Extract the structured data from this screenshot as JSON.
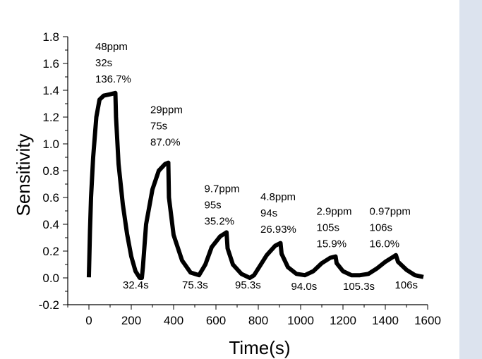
{
  "chart_data": {
    "type": "line",
    "title": "",
    "xlabel": "Time(s)",
    "ylabel": "Sensitivity",
    "xlim": [
      -100,
      1600
    ],
    "ylim": [
      -0.2,
      1.8
    ],
    "xticks": [
      0,
      200,
      400,
      600,
      800,
      1000,
      1200,
      1400,
      1600
    ],
    "yticks": [
      -0.2,
      0.0,
      0.2,
      0.4,
      0.6,
      0.8,
      1.0,
      1.2,
      1.4,
      1.6,
      1.8
    ],
    "xtick_labels": [
      "0",
      "200",
      "400",
      "600",
      "800",
      "1000",
      "1200",
      "1400",
      "1600"
    ],
    "ytick_labels": [
      "-0.2",
      "0.0",
      "0.2",
      "0.4",
      "0.6",
      "0.8",
      "1.0",
      "1.2",
      "1.4",
      "1.6",
      "1.8"
    ],
    "grid": false,
    "legend": "top-right",
    "series": [
      {
        "color": "#000000",
        "x": [
          0,
          2,
          5,
          10,
          20,
          35,
          50,
          70,
          100,
          125,
          128,
          140,
          160,
          180,
          200,
          220,
          240,
          250,
          255,
          270,
          300,
          330,
          360,
          375,
          378,
          400,
          440,
          480,
          520,
          550,
          580,
          620,
          650,
          655,
          680,
          720,
          760,
          780,
          800,
          840,
          880,
          905,
          910,
          940,
          980,
          1020,
          1060,
          1100,
          1140,
          1165,
          1170,
          1200,
          1240,
          1280,
          1320,
          1360,
          1400,
          1440,
          1450,
          1460,
          1500,
          1540,
          1570
        ],
        "y": [
          0.02,
          0.15,
          0.35,
          0.6,
          0.9,
          1.2,
          1.33,
          1.36,
          1.37,
          1.38,
          1.2,
          0.85,
          0.55,
          0.33,
          0.16,
          0.05,
          0.0,
          0.0,
          0.08,
          0.4,
          0.66,
          0.8,
          0.85,
          0.86,
          0.6,
          0.32,
          0.13,
          0.04,
          0.02,
          0.1,
          0.23,
          0.31,
          0.34,
          0.22,
          0.1,
          0.03,
          0.0,
          0.02,
          0.07,
          0.17,
          0.24,
          0.26,
          0.18,
          0.08,
          0.03,
          0.02,
          0.05,
          0.11,
          0.15,
          0.16,
          0.11,
          0.05,
          0.02,
          0.02,
          0.03,
          0.07,
          0.12,
          0.16,
          0.17,
          0.12,
          0.06,
          0.02,
          0.01
        ]
      }
    ],
    "annotations": [
      {
        "id": "peak-1",
        "lines": [
          "48ppm",
          "32s",
          "136.7%"
        ],
        "x": 30,
        "y": 1.7
      },
      {
        "id": "peak-2",
        "lines": [
          "29ppm",
          "75s",
          "87.0%"
        ],
        "x": 290,
        "y": 1.23
      },
      {
        "id": "peak-3",
        "lines": [
          "9.7ppm",
          "95s",
          "35.2%"
        ],
        "x": 545,
        "y": 0.64
      },
      {
        "id": "peak-4",
        "lines": [
          "4.8ppm",
          "94s",
          "26.93%"
        ],
        "x": 810,
        "y": 0.58
      },
      {
        "id": "peak-5",
        "lines": [
          "2.9ppm",
          "105s",
          "15.9%"
        ],
        "x": 1075,
        "y": 0.47
      },
      {
        "id": "peak-6",
        "lines": [
          "0.97ppm",
          "106s",
          "16.0%"
        ],
        "x": 1325,
        "y": 0.47
      },
      {
        "id": "recovery-1",
        "lines": [
          "32.4s"
        ],
        "x": 160,
        "y": -0.08
      },
      {
        "id": "recovery-2",
        "lines": [
          "75.3s"
        ],
        "x": 440,
        "y": -0.08
      },
      {
        "id": "recovery-3",
        "lines": [
          "95.3s"
        ],
        "x": 690,
        "y": -0.08
      },
      {
        "id": "recovery-4",
        "lines": [
          "94.0s"
        ],
        "x": 955,
        "y": -0.09
      },
      {
        "id": "recovery-5",
        "lines": [
          "105.3s"
        ],
        "x": 1200,
        "y": -0.09
      },
      {
        "id": "recovery-6",
        "lines": [
          "106s"
        ],
        "x": 1445,
        "y": -0.08
      }
    ]
  }
}
